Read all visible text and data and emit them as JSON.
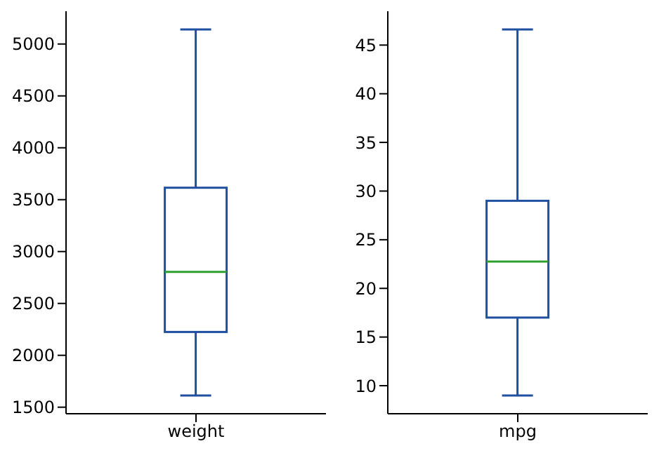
{
  "chart_data": [
    {
      "type": "box",
      "categories": [
        "weight"
      ],
      "series": [
        {
          "color": "#1f4fa0",
          "boxes": [
            {
              "low": 1613,
              "q1": 2225,
              "median": 2803,
              "q3": 3615,
              "high": 5140
            }
          ]
        }
      ],
      "ylim": [
        1437,
        5316
      ],
      "yticks": [
        1500,
        2000,
        2500,
        3000,
        3500,
        4000,
        4500,
        5000
      ],
      "grid": false,
      "legend": false
    },
    {
      "type": "box",
      "categories": [
        "mpg"
      ],
      "series": [
        {
          "color": "#1f4fa0",
          "boxes": [
            {
              "low": 9,
              "q1": 17,
              "median": 22.75,
              "q3": 29,
              "high": 46.6
            }
          ]
        }
      ],
      "ylim": [
        7.12,
        48.48
      ],
      "yticks": [
        10,
        15,
        20,
        25,
        30,
        35,
        40,
        45
      ],
      "grid": false,
      "legend": false
    }
  ]
}
